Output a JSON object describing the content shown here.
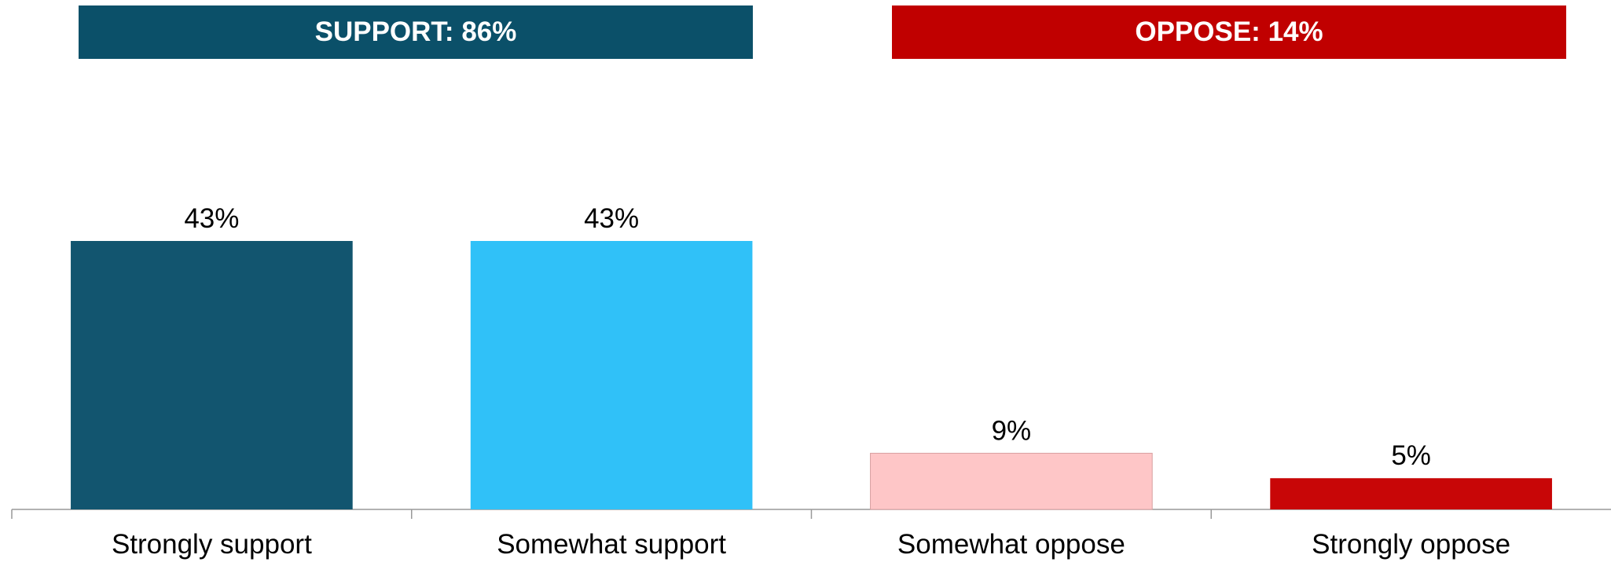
{
  "groups": [
    {
      "label": "SUPPORT: 86%",
      "color": "#0b5069"
    },
    {
      "label": "OPPOSE: 14%",
      "color": "#c00000"
    }
  ],
  "chart_data": {
    "type": "bar",
    "categories": [
      "Strongly support",
      "Somewhat support",
      "Somewhat oppose",
      "Strongly oppose"
    ],
    "values": [
      43,
      43,
      9,
      5
    ],
    "value_labels": [
      "43%",
      "43%",
      "9%",
      "5%"
    ],
    "colors": [
      "#12556f",
      "#30c1f8",
      "#fec6c7",
      "#c80607"
    ],
    "ylim": [
      0,
      43
    ],
    "grid": false,
    "legend": "none",
    "title": "",
    "xlabel": "",
    "ylabel": ""
  }
}
